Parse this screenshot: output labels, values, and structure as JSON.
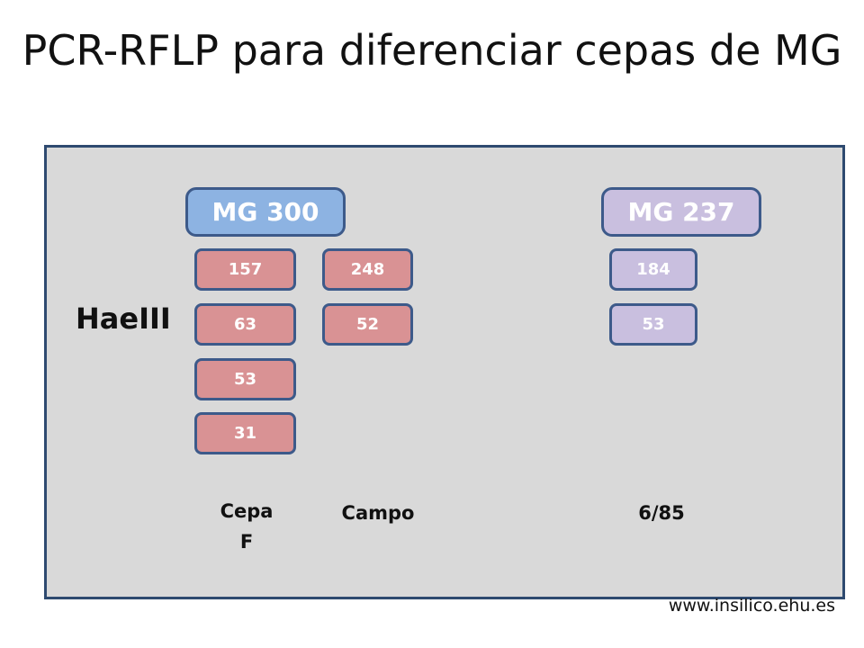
{
  "title": "PCR-RFLP para diferenciar cepas de MG",
  "colors": {
    "panel_background": "#d9d9d9",
    "panel_border": "#2e4a70",
    "mg300_header": "#8db3e2",
    "mg237_header": "#c9bfdf",
    "mg300_fragment": "#d99294",
    "mg237_fragment": "#c9bfdf",
    "box_border": "#3d5a8a"
  },
  "enzyme": "HaeIII",
  "strains": [
    {
      "name": "MG 300",
      "columns": [
        {
          "label": "Cepa F",
          "fragments": [
            "157",
            "63",
            "53",
            "31"
          ]
        },
        {
          "label": "Campo",
          "fragments": [
            "248",
            "52"
          ]
        }
      ]
    },
    {
      "name": "MG 237",
      "columns": [
        {
          "label": "6/85",
          "fragments": [
            "184",
            "53"
          ]
        }
      ]
    }
  ],
  "footer": "www.insilico.ehu.es"
}
